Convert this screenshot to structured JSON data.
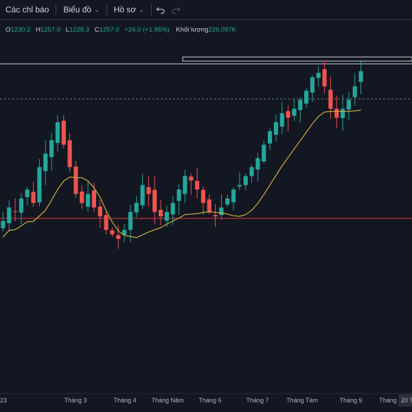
{
  "toolbar": {
    "indicators_label": "Các chỉ báo",
    "chart_label": "Biểu đồ",
    "profile_label": "Hồ sơ",
    "undo_icon": "undo-icon",
    "redo_icon": "redo-icon"
  },
  "legend": {
    "open_key": "O",
    "open_value": "1230.2",
    "high_key": "H",
    "high_value": "1257.0",
    "low_key": "L",
    "low_value": "1228.3",
    "close_key": "C",
    "close_value": "1257.0",
    "change_value": "+24.0 (+1.95%)",
    "volume_label": "Khối lượng",
    "volume_value": "226.097K"
  },
  "colors": {
    "background": "#131722",
    "up": "#26a69a",
    "down": "#ef5350",
    "ma_line": "#d4b33a",
    "support_line": "#e53935",
    "resistance_line": "#d1d4dc"
  },
  "chart_data": {
    "type": "line",
    "x_ticks": [
      "23",
      "Tháng 3",
      "Tháng 4",
      "Tháng Năm",
      "Tháng 6",
      "Tháng 7",
      "Tháng Tám",
      "Tháng 9",
      "Tháng"
    ],
    "x_highlight": "20 T",
    "ylim": [
      900,
      1275
    ],
    "series": [
      {
        "values": [
          1090,
          1105,
          1100,
          1115,
          1125,
          1110,
          1150,
          1165,
          1180,
          1200,
          1175,
          1150,
          1120,
          1110,
          1120,
          1105,
          1095,
          1080,
          1075,
          1070,
          1080,
          1100,
          1110,
          1130,
          1120,
          1100,
          1095,
          1100,
          1110,
          1125,
          1140,
          1135,
          1125,
          1110,
          1100,
          1095,
          1105,
          1115,
          1125,
          1130,
          1140,
          1150,
          1160,
          1175,
          1190,
          1200,
          1210,
          1205,
          1215,
          1225,
          1235,
          1250,
          1255,
          1240,
          1215,
          1205,
          1215,
          1225,
          1240,
          1257
        ]
      }
    ],
    "horizontal_levels": [
      1100,
      1263
    ]
  }
}
